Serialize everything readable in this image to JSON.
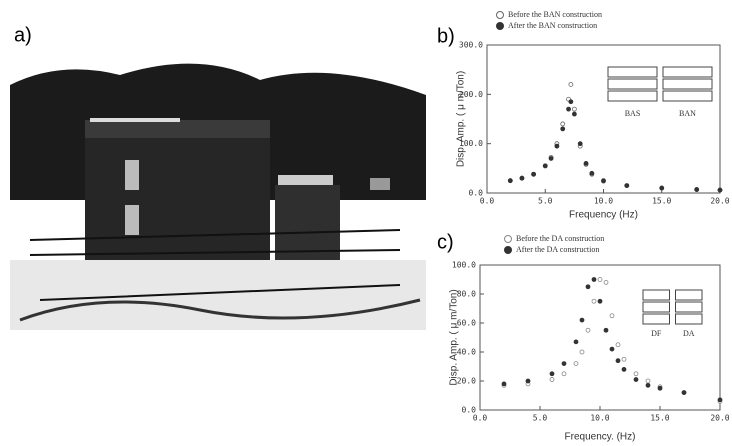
{
  "photo_label": "a)",
  "chart_data": [
    {
      "type": "scatter",
      "label": "b)",
      "xlabel": "Frequency (Hz)",
      "ylabel": "Disp. Amp. ( μ m/Ton)",
      "xlim": [
        0,
        20
      ],
      "ylim": [
        0,
        300
      ],
      "xticks": [
        {
          "value": 0,
          "label": "0.0"
        },
        {
          "value": 5,
          "label": "5.0"
        },
        {
          "value": 10,
          "label": "10.0"
        },
        {
          "value": 15,
          "label": "15.0"
        },
        {
          "value": 20,
          "label": "20.0"
        }
      ],
      "yticks": [
        {
          "value": 0,
          "label": "0.0"
        },
        {
          "value": 100,
          "label": "100.0"
        },
        {
          "value": 200,
          "label": "200.0"
        },
        {
          "value": 300,
          "label": "300.0"
        }
      ],
      "x": [
        2,
        3,
        4,
        5,
        5.5,
        6,
        6.5,
        7,
        7.2,
        7.5,
        8,
        8.5,
        9,
        10,
        12,
        15,
        18,
        20
      ],
      "series": [
        {
          "name": "Before the BAN construction",
          "color": "#666666",
          "marker": "open",
          "values": [
            25,
            30,
            38,
            55,
            72,
            100,
            140,
            190,
            220,
            170,
            95,
            58,
            38,
            24,
            15,
            10,
            7,
            6
          ]
        },
        {
          "name": "After the BAN construction",
          "color": "#333333",
          "marker": "filled",
          "values": [
            25,
            30,
            38,
            55,
            70,
            95,
            130,
            170,
            185,
            160,
            100,
            60,
            40,
            25,
            15,
            10,
            7,
            6
          ]
        }
      ],
      "inset_labels": [
        "BAS",
        "BAN"
      ]
    },
    {
      "type": "scatter",
      "label": "c)",
      "xlabel": "Frequency. (Hz)",
      "ylabel": "Disp. Amp. ( μ m/Ton)",
      "xlim": [
        0,
        20
      ],
      "ylim": [
        0,
        100
      ],
      "xticks": [
        {
          "value": 0,
          "label": "0.0"
        },
        {
          "value": 5,
          "label": "5.0"
        },
        {
          "value": 10,
          "label": "10.0"
        },
        {
          "value": 15,
          "label": "15.0"
        },
        {
          "value": 20,
          "label": "20.0"
        }
      ],
      "yticks": [
        {
          "value": 0,
          "label": "0.0"
        },
        {
          "value": 20,
          "label": "20.0"
        },
        {
          "value": 40,
          "label": "40.0"
        },
        {
          "value": 60,
          "label": "60.0"
        },
        {
          "value": 80,
          "label": "80.0"
        },
        {
          "value": 100,
          "label": "100.0"
        }
      ],
      "x": [
        2,
        4,
        6,
        7,
        8,
        8.5,
        9,
        9.5,
        10,
        10.5,
        11,
        11.5,
        12,
        13,
        14,
        15,
        17,
        20
      ],
      "series": [
        {
          "name": "Before the DA construction",
          "color": "#888888",
          "marker": "open",
          "values": [
            17,
            18,
            21,
            25,
            32,
            40,
            55,
            75,
            90,
            88,
            65,
            45,
            35,
            25,
            20,
            16,
            12,
            6
          ]
        },
        {
          "name": "After the DA construction",
          "color": "#333333",
          "marker": "filled",
          "values": [
            18,
            20,
            25,
            32,
            47,
            62,
            85,
            90,
            75,
            55,
            42,
            34,
            28,
            21,
            17,
            15,
            12,
            7
          ]
        }
      ],
      "inset_labels": [
        "DF",
        "DA"
      ]
    }
  ]
}
